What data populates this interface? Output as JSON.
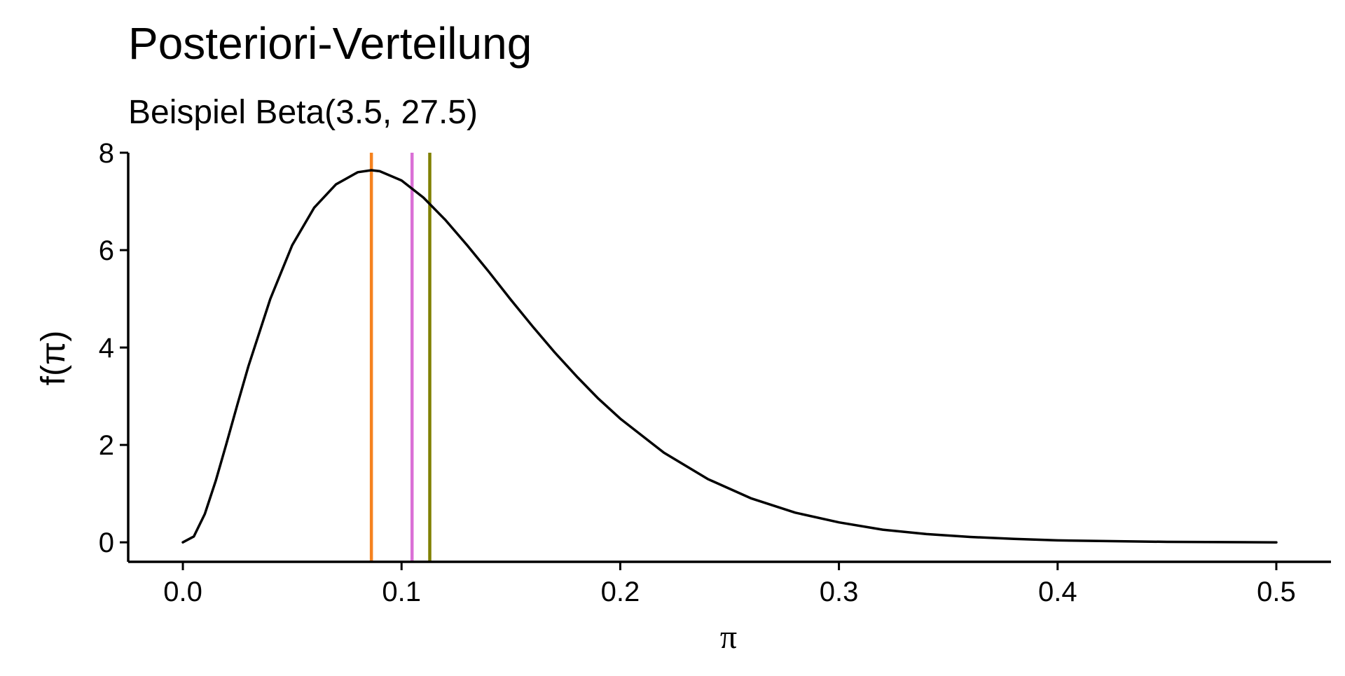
{
  "chart_data": {
    "type": "line",
    "title": "Posteriori-Verteilung",
    "subtitle": "Beispiel Beta(3.5, 27.5)",
    "xlabel": "π",
    "ylabel": "f(π)",
    "xlim": [
      -0.025,
      0.525
    ],
    "ylim": [
      -0.4,
      8.0
    ],
    "x_ticks": [
      0.0,
      0.1,
      0.2,
      0.3,
      0.4,
      0.5
    ],
    "x_tick_labels": [
      "0.0",
      "0.1",
      "0.2",
      "0.3",
      "0.4",
      "0.5"
    ],
    "y_ticks": [
      0,
      2,
      4,
      6,
      8
    ],
    "y_tick_labels": [
      "0",
      "2",
      "4",
      "6",
      "8"
    ],
    "grid": false,
    "distribution": {
      "family": "beta",
      "alpha": 3.5,
      "beta": 27.5
    },
    "x": [
      0.0,
      0.005,
      0.01,
      0.015,
      0.02,
      0.025,
      0.03,
      0.04,
      0.05,
      0.06,
      0.07,
      0.08,
      0.0862,
      0.09,
      0.1,
      0.11,
      0.12,
      0.13,
      0.14,
      0.15,
      0.16,
      0.17,
      0.18,
      0.19,
      0.2,
      0.22,
      0.24,
      0.26,
      0.28,
      0.3,
      0.32,
      0.34,
      0.36,
      0.38,
      0.4,
      0.45,
      0.5
    ],
    "series": [
      {
        "values": [
          0.0,
          0.12,
          0.58,
          1.26,
          2.04,
          2.84,
          3.62,
          5.0,
          6.1,
          6.87,
          7.35,
          7.6,
          7.64,
          7.62,
          7.43,
          7.08,
          6.62,
          6.1,
          5.55,
          4.98,
          4.43,
          3.9,
          3.41,
          2.95,
          2.54,
          1.84,
          1.3,
          0.9,
          0.61,
          0.41,
          0.26,
          0.17,
          0.11,
          0.07,
          0.04,
          0.01,
          0.0
        ],
        "color": "#000000"
      }
    ],
    "vertical_lines": [
      {
        "x": 0.0862,
        "color": "#F5821F"
      },
      {
        "x": 0.1048,
        "color": "#DA70D6"
      },
      {
        "x": 0.1129,
        "color": "#808000"
      }
    ]
  }
}
